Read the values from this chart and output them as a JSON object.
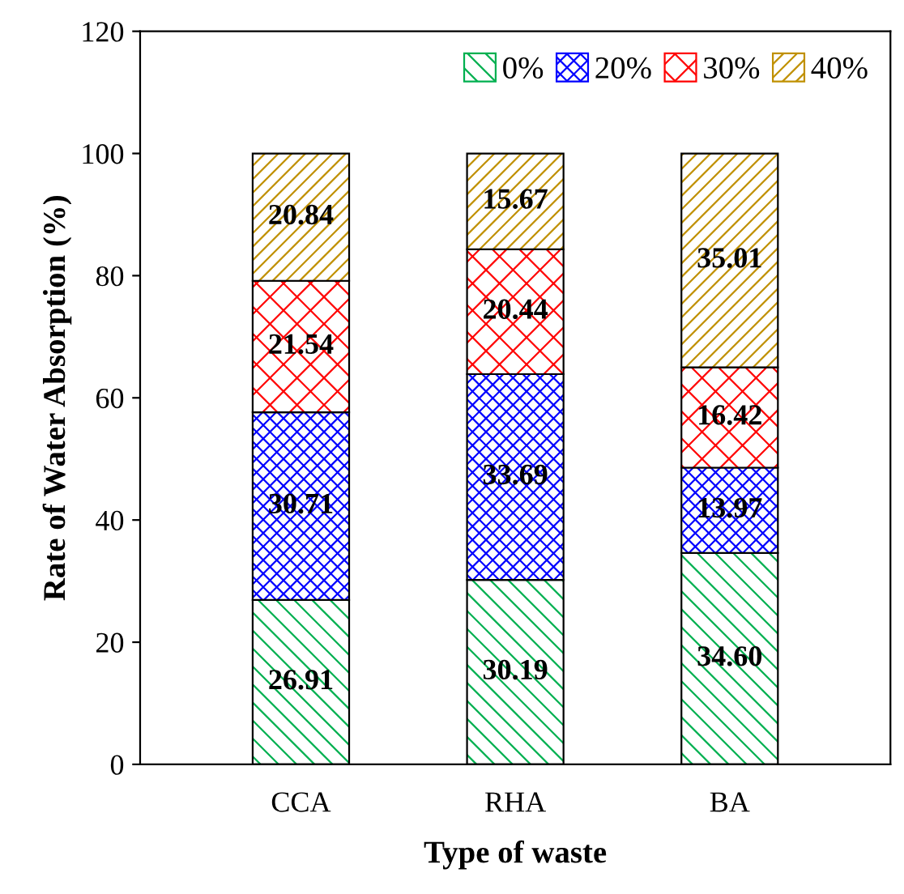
{
  "chart_data": {
    "type": "bar",
    "stacked": true,
    "xlabel": "Type of waste",
    "ylabel": "Rate of Water Absorption (%)",
    "categories": [
      "CCA",
      "RHA",
      "BA"
    ],
    "series": [
      {
        "name": "0%",
        "color": "#00b050",
        "values": [
          26.91,
          30.19,
          34.6
        ],
        "value_labels": [
          "26.91",
          "30.19",
          "34.60"
        ]
      },
      {
        "name": "20%",
        "color": "#0000ff",
        "values": [
          30.71,
          33.69,
          13.97
        ],
        "value_labels": [
          "30.71",
          "33.69",
          "13.97"
        ]
      },
      {
        "name": "30%",
        "color": "#ff0000",
        "values": [
          21.54,
          20.44,
          16.42
        ],
        "value_labels": [
          "21.54",
          "20.44",
          "16.42"
        ]
      },
      {
        "name": "40%",
        "color": "#c09000",
        "values": [
          20.84,
          15.67,
          35.01
        ],
        "value_labels": [
          "20.84",
          "15.67",
          "35.01"
        ]
      }
    ],
    "ylim": [
      0,
      120
    ],
    "yticks": [
      0,
      20,
      40,
      60,
      80,
      100,
      120
    ],
    "grid": false,
    "legend": "top right"
  }
}
